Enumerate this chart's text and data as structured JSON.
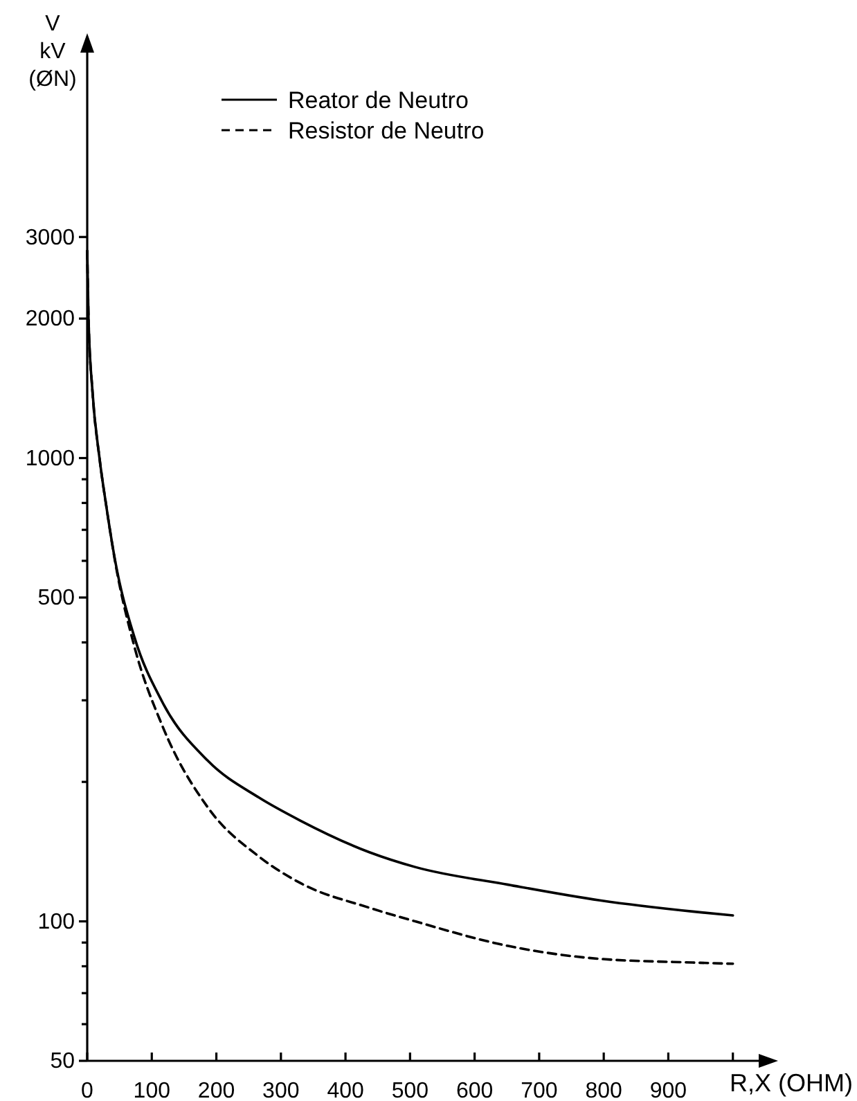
{
  "chart_data": {
    "type": "line",
    "xlabel": "R,X (OHM)",
    "ylabel": "V kV (ØN)",
    "log": "y",
    "xlim": [
      0,
      1040
    ],
    "ylim": [
      50,
      7500
    ],
    "xticks": [
      0,
      100,
      200,
      300,
      400,
      500,
      600,
      700,
      800,
      900,
      {
        "value": 1000,
        "label": null
      }
    ],
    "yticks": [
      50,
      {
        "value": 60,
        "label": null
      },
      {
        "value": 70,
        "label": null
      },
      {
        "value": 80,
        "label": null
      },
      {
        "value": 90,
        "label": null
      },
      100,
      {
        "value": 200,
        "label": null
      },
      {
        "value": 300,
        "label": null
      },
      {
        "value": 400,
        "label": null
      },
      500,
      {
        "value": 600,
        "label": null
      },
      {
        "value": 700,
        "label": null
      },
      {
        "value": 800,
        "label": null
      },
      {
        "value": 900,
        "label": null
      },
      1000,
      2000,
      3000
    ],
    "legend": "top",
    "grid": false,
    "marker": "none",
    "series": [
      {
        "name": "Reator de Neutro",
        "color": "#000000",
        "line_style": "solid",
        "x": [
          0,
          2,
          8,
          19,
          30,
          43,
          73,
          116,
          187,
          266,
          330,
          437,
          508,
          652,
          794,
          938,
          1000
        ],
        "values": [
          2800,
          2000,
          1400,
          1000,
          780,
          603,
          411,
          298,
          222,
          185,
          165,
          141,
          131,
          120,
          111,
          105,
          103
        ]
      },
      {
        "name": "Resistor de Neutro",
        "color": "#000000",
        "line_style": "dashed",
        "x": [
          0,
          2,
          8,
          19,
          30,
          43,
          73,
          116,
          187,
          266,
          330,
          437,
          508,
          652,
          794,
          938,
          1000
        ],
        "values": [
          2800,
          2000,
          1400,
          1000,
          780,
          600,
          392,
          265,
          176,
          138,
          121,
          107,
          100,
          88.5,
          83,
          81.5,
          81
        ]
      }
    ]
  }
}
